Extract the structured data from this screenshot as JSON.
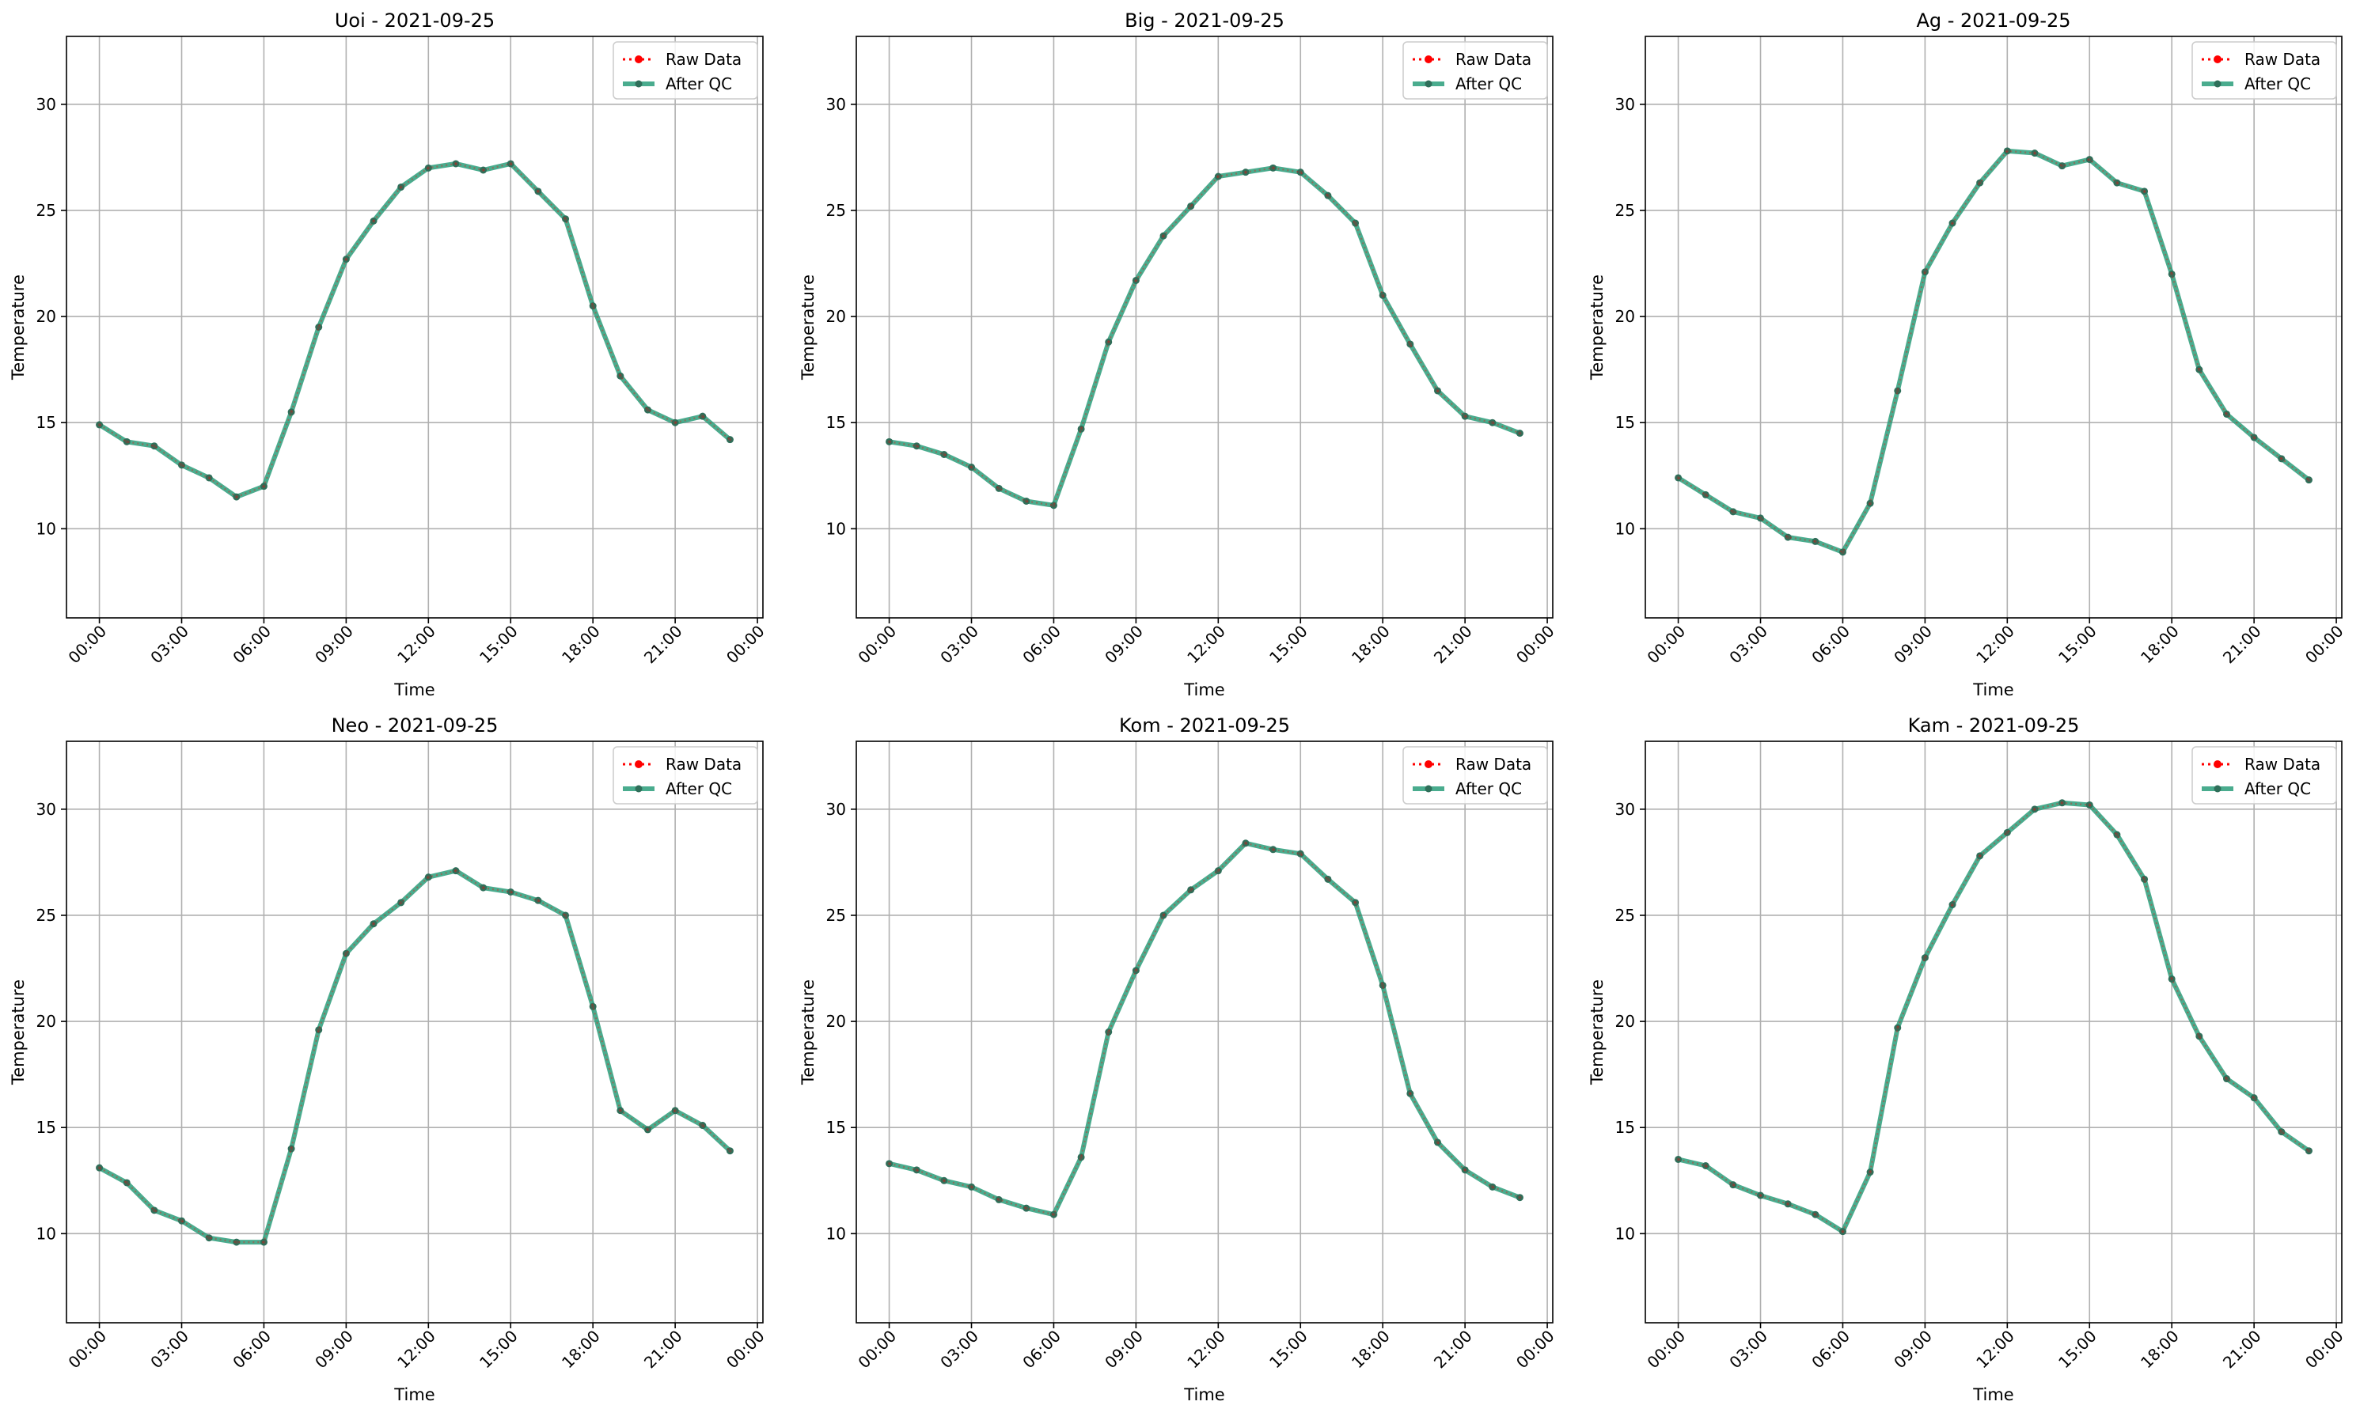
{
  "colors": {
    "raw": "#ff0000",
    "qc": "#2a9d7a",
    "qc_marker": "#2f6f5a",
    "grid": "#b0b0b0",
    "axes": "#000000"
  },
  "chart_data": [
    {
      "type": "line",
      "title": "Uoi - 2021-09-25",
      "xlabel": "Time",
      "ylabel": "Temperature",
      "xticks": [
        "00:00",
        "03:00",
        "06:00",
        "09:00",
        "12:00",
        "15:00",
        "18:00",
        "21:00",
        "00:00"
      ],
      "yticks": [
        10,
        15,
        20,
        25,
        30
      ],
      "xlim_hours": [
        -1.2,
        24.2
      ],
      "ylim": [
        5.8,
        33.2
      ],
      "grid": true,
      "legend": "top-right",
      "x_hours": [
        0,
        1,
        2,
        3,
        4,
        5,
        6,
        7,
        8,
        9,
        10,
        11,
        12,
        13,
        14,
        15,
        16,
        17,
        18,
        19,
        20,
        21,
        22,
        23
      ],
      "series": [
        {
          "name": "Raw Data",
          "style": "dotted-red-markers",
          "values": [
            14.9,
            14.1,
            13.9,
            13.0,
            12.4,
            11.5,
            12.0,
            15.5,
            19.5,
            22.7,
            24.5,
            26.1,
            27.0,
            27.2,
            26.9,
            27.2,
            25.9,
            24.6,
            20.5,
            17.2,
            15.6,
            15.0,
            15.3,
            14.2
          ]
        },
        {
          "name": "After QC",
          "style": "solid-green-markers",
          "values": [
            14.9,
            14.1,
            13.9,
            13.0,
            12.4,
            11.5,
            12.0,
            15.5,
            19.5,
            22.7,
            24.5,
            26.1,
            27.0,
            27.2,
            26.9,
            27.2,
            25.9,
            24.6,
            20.5,
            17.2,
            15.6,
            15.0,
            15.3,
            14.2
          ]
        }
      ]
    },
    {
      "type": "line",
      "title": "Big - 2021-09-25",
      "xlabel": "Time",
      "ylabel": "Temperature",
      "xticks": [
        "00:00",
        "03:00",
        "06:00",
        "09:00",
        "12:00",
        "15:00",
        "18:00",
        "21:00",
        "00:00"
      ],
      "yticks": [
        10,
        15,
        20,
        25,
        30
      ],
      "xlim_hours": [
        -1.2,
        24.2
      ],
      "ylim": [
        5.8,
        33.2
      ],
      "grid": true,
      "legend": "top-right",
      "x_hours": [
        0,
        1,
        2,
        3,
        4,
        5,
        6,
        7,
        8,
        9,
        10,
        11,
        12,
        13,
        14,
        15,
        16,
        17,
        18,
        19,
        20,
        21,
        22,
        23
      ],
      "series": [
        {
          "name": "Raw Data",
          "style": "dotted-red-markers",
          "values": [
            14.1,
            13.9,
            13.5,
            12.9,
            11.9,
            11.3,
            11.1,
            14.7,
            18.8,
            21.7,
            23.8,
            25.2,
            26.6,
            26.8,
            27.0,
            26.8,
            25.7,
            24.4,
            21.0,
            18.7,
            16.5,
            15.3,
            15.0,
            14.5
          ]
        },
        {
          "name": "After QC",
          "style": "solid-green-markers",
          "values": [
            14.1,
            13.9,
            13.5,
            12.9,
            11.9,
            11.3,
            11.1,
            14.7,
            18.8,
            21.7,
            23.8,
            25.2,
            26.6,
            26.8,
            27.0,
            26.8,
            25.7,
            24.4,
            21.0,
            18.7,
            16.5,
            15.3,
            15.0,
            14.5
          ]
        }
      ]
    },
    {
      "type": "line",
      "title": "Ag - 2021-09-25",
      "xlabel": "Time",
      "ylabel": "Temperature",
      "xticks": [
        "00:00",
        "03:00",
        "06:00",
        "09:00",
        "12:00",
        "15:00",
        "18:00",
        "21:00",
        "00:00"
      ],
      "yticks": [
        10,
        15,
        20,
        25,
        30
      ],
      "xlim_hours": [
        -1.2,
        24.2
      ],
      "ylim": [
        5.8,
        33.2
      ],
      "grid": true,
      "legend": "top-right",
      "x_hours": [
        0,
        1,
        2,
        3,
        4,
        5,
        6,
        7,
        8,
        9,
        10,
        11,
        12,
        13,
        14,
        15,
        16,
        17,
        18,
        19,
        20,
        21,
        22,
        23
      ],
      "series": [
        {
          "name": "Raw Data",
          "style": "dotted-red-markers",
          "values": [
            12.4,
            11.6,
            10.8,
            10.5,
            9.6,
            9.4,
            8.9,
            11.2,
            16.5,
            22.1,
            24.4,
            26.3,
            27.8,
            27.7,
            27.1,
            27.4,
            26.3,
            25.9,
            22.0,
            17.5,
            15.4,
            14.3,
            13.3,
            12.3
          ]
        },
        {
          "name": "After QC",
          "style": "solid-green-markers",
          "values": [
            12.4,
            11.6,
            10.8,
            10.5,
            9.6,
            9.4,
            8.9,
            11.2,
            16.5,
            22.1,
            24.4,
            26.3,
            27.8,
            27.7,
            27.1,
            27.4,
            26.3,
            25.9,
            22.0,
            17.5,
            15.4,
            14.3,
            13.3,
            12.3
          ]
        }
      ]
    },
    {
      "type": "line",
      "title": "Neo - 2021-09-25",
      "xlabel": "Time",
      "ylabel": "Temperature",
      "xticks": [
        "00:00",
        "03:00",
        "06:00",
        "09:00",
        "12:00",
        "15:00",
        "18:00",
        "21:00",
        "00:00"
      ],
      "yticks": [
        10,
        15,
        20,
        25,
        30
      ],
      "xlim_hours": [
        -1.2,
        24.2
      ],
      "ylim": [
        5.8,
        33.2
      ],
      "grid": true,
      "legend": "top-right",
      "x_hours": [
        0,
        1,
        2,
        3,
        4,
        5,
        6,
        7,
        8,
        9,
        10,
        11,
        12,
        13,
        14,
        15,
        16,
        17,
        18,
        19,
        20,
        21,
        22,
        23
      ],
      "series": [
        {
          "name": "Raw Data",
          "style": "dotted-red-markers",
          "values": [
            13.1,
            12.4,
            11.1,
            10.6,
            9.8,
            9.6,
            9.6,
            14.0,
            19.6,
            23.2,
            24.6,
            25.6,
            26.8,
            27.1,
            26.3,
            26.1,
            25.7,
            25.0,
            20.7,
            15.8,
            14.9,
            15.8,
            15.1,
            13.9
          ]
        },
        {
          "name": "After QC",
          "style": "solid-green-markers",
          "values": [
            13.1,
            12.4,
            11.1,
            10.6,
            9.8,
            9.6,
            9.6,
            14.0,
            19.6,
            23.2,
            24.6,
            25.6,
            26.8,
            27.1,
            26.3,
            26.1,
            25.7,
            25.0,
            20.7,
            15.8,
            14.9,
            15.8,
            15.1,
            13.9
          ]
        }
      ]
    },
    {
      "type": "line",
      "title": "Kom - 2021-09-25",
      "xlabel": "Time",
      "ylabel": "Temperature",
      "xticks": [
        "00:00",
        "03:00",
        "06:00",
        "09:00",
        "12:00",
        "15:00",
        "18:00",
        "21:00",
        "00:00"
      ],
      "yticks": [
        10,
        15,
        20,
        25,
        30
      ],
      "xlim_hours": [
        -1.2,
        24.2
      ],
      "ylim": [
        5.8,
        33.2
      ],
      "grid": true,
      "legend": "top-right",
      "x_hours": [
        0,
        1,
        2,
        3,
        4,
        5,
        6,
        7,
        8,
        9,
        10,
        11,
        12,
        13,
        14,
        15,
        16,
        17,
        18,
        19,
        20,
        21,
        22,
        23
      ],
      "series": [
        {
          "name": "Raw Data",
          "style": "dotted-red-markers",
          "values": [
            13.3,
            13.0,
            12.5,
            12.2,
            11.6,
            11.2,
            10.9,
            13.6,
            19.5,
            22.4,
            25.0,
            26.2,
            27.1,
            28.4,
            28.1,
            27.9,
            26.7,
            25.6,
            21.7,
            16.6,
            14.3,
            13.0,
            12.2,
            11.7
          ]
        },
        {
          "name": "After QC",
          "style": "solid-green-markers",
          "values": [
            13.3,
            13.0,
            12.5,
            12.2,
            11.6,
            11.2,
            10.9,
            13.6,
            19.5,
            22.4,
            25.0,
            26.2,
            27.1,
            28.4,
            28.1,
            27.9,
            26.7,
            25.6,
            21.7,
            16.6,
            14.3,
            13.0,
            12.2,
            11.7
          ]
        }
      ]
    },
    {
      "type": "line",
      "title": "Kam - 2021-09-25",
      "xlabel": "Time",
      "ylabel": "Temperature",
      "xticks": [
        "00:00",
        "03:00",
        "06:00",
        "09:00",
        "12:00",
        "15:00",
        "18:00",
        "21:00",
        "00:00"
      ],
      "yticks": [
        10,
        15,
        20,
        25,
        30
      ],
      "xlim_hours": [
        -1.2,
        24.2
      ],
      "ylim": [
        5.8,
        33.2
      ],
      "grid": true,
      "legend": "top-right",
      "x_hours": [
        0,
        1,
        2,
        3,
        4,
        5,
        6,
        7,
        8,
        9,
        10,
        11,
        12,
        13,
        14,
        15,
        16,
        17,
        18,
        19,
        20,
        21,
        22,
        23
      ],
      "series": [
        {
          "name": "Raw Data",
          "style": "dotted-red-markers",
          "values": [
            13.5,
            13.2,
            12.3,
            11.8,
            11.4,
            10.9,
            10.1,
            12.9,
            19.7,
            23.0,
            25.5,
            27.8,
            28.9,
            30.0,
            30.3,
            30.2,
            28.8,
            26.7,
            22.0,
            19.3,
            17.3,
            16.4,
            14.8,
            13.9
          ]
        },
        {
          "name": "After QC",
          "style": "solid-green-markers",
          "values": [
            13.5,
            13.2,
            12.3,
            11.8,
            11.4,
            10.9,
            10.1,
            12.9,
            19.7,
            23.0,
            25.5,
            27.8,
            28.9,
            30.0,
            30.3,
            30.2,
            28.8,
            26.7,
            22.0,
            19.3,
            17.3,
            16.4,
            14.8,
            13.9
          ]
        }
      ]
    }
  ]
}
